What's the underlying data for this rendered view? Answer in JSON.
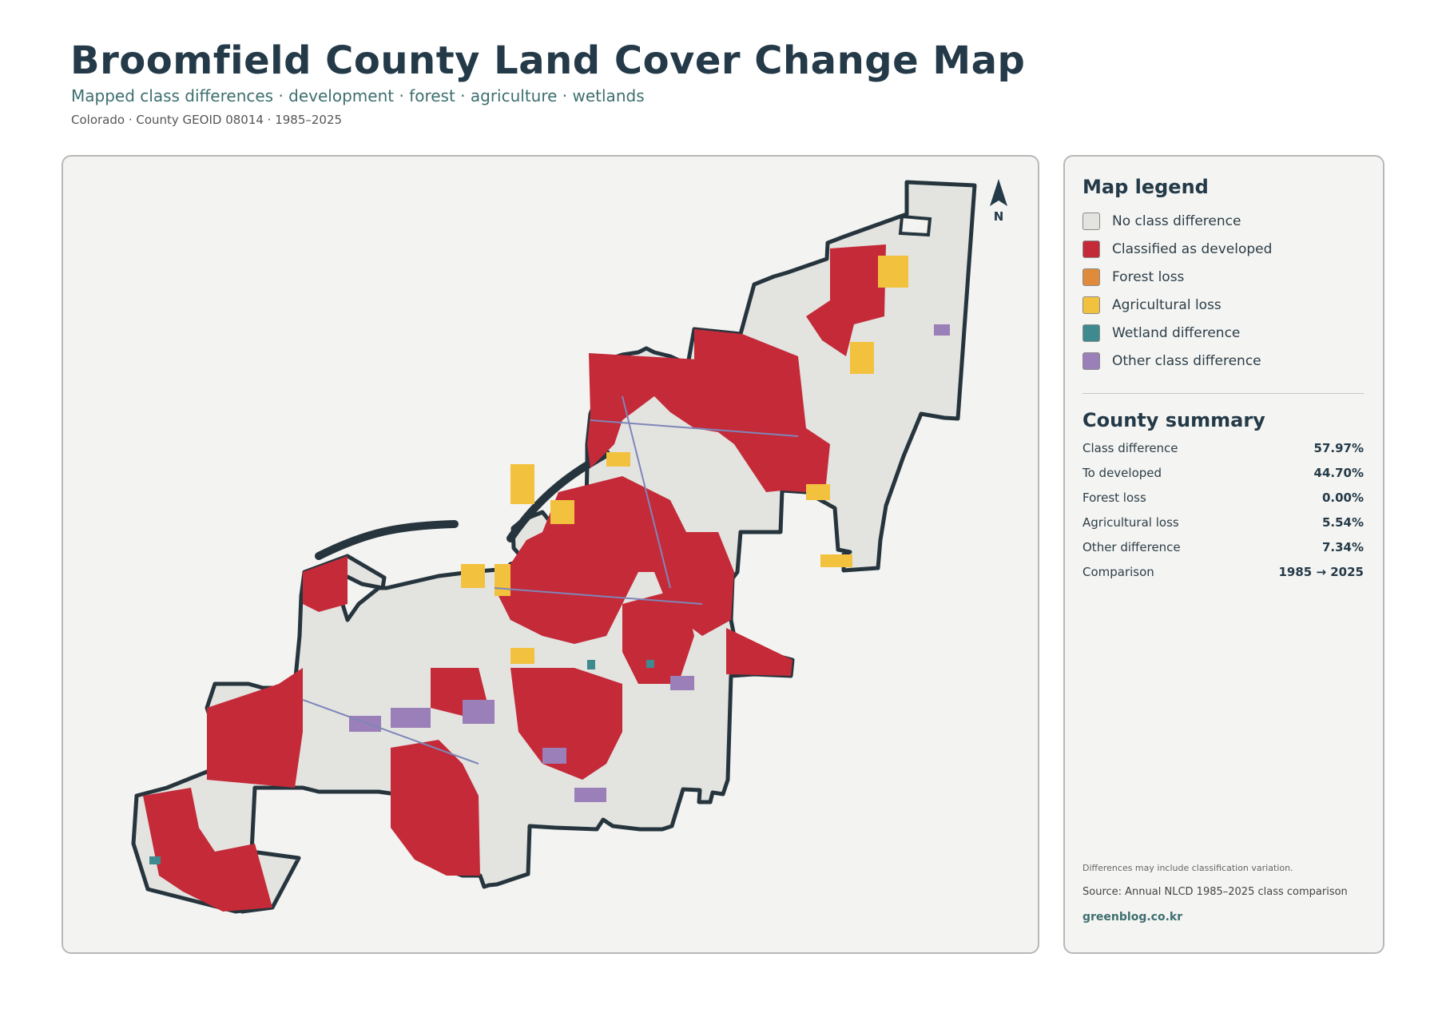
{
  "header": {
    "title": "Broomfield County Land Cover Change Map",
    "subtitle": "Mapped class differences · development · forest · agriculture · wetlands",
    "meta": "Colorado · County GEOID 08014 · 1985–2025"
  },
  "map": {
    "north_label": "N",
    "colors": {
      "background": "#f3f3f1",
      "county_fill": "#e3e3e0",
      "boundary": "#26353d",
      "developed": "#c42a38",
      "forest_loss": "#e08b3c",
      "agricultural_loss": "#f2c13e",
      "wetland": "#3f8a8f",
      "other": "#9a7fb8",
      "roads": "#7f86b8"
    }
  },
  "legend": {
    "title": "Map legend",
    "items": [
      {
        "label": "No class difference",
        "color": "#e3e3e0"
      },
      {
        "label": "Classified as developed",
        "color": "#c42a38"
      },
      {
        "label": "Forest loss",
        "color": "#e08b3c"
      },
      {
        "label": "Agricultural loss",
        "color": "#f2c13e"
      },
      {
        "label": "Wetland difference",
        "color": "#3f8a8f"
      },
      {
        "label": "Other class difference",
        "color": "#9a7fb8"
      }
    ]
  },
  "summary": {
    "title": "County summary",
    "rows": [
      {
        "label": "Class difference",
        "value": "57.97%"
      },
      {
        "label": "To developed",
        "value": "44.70%"
      },
      {
        "label": "Forest loss",
        "value": "0.00%"
      },
      {
        "label": "Agricultural loss",
        "value": "5.54%"
      },
      {
        "label": "Other difference",
        "value": "7.34%"
      },
      {
        "label": "Comparison",
        "value": "1985 → 2025"
      }
    ]
  },
  "footer": {
    "note": "Differences may include classification variation.",
    "source": "Source: Annual NLCD 1985–2025 class comparison",
    "site": "greenblog.co.kr"
  }
}
